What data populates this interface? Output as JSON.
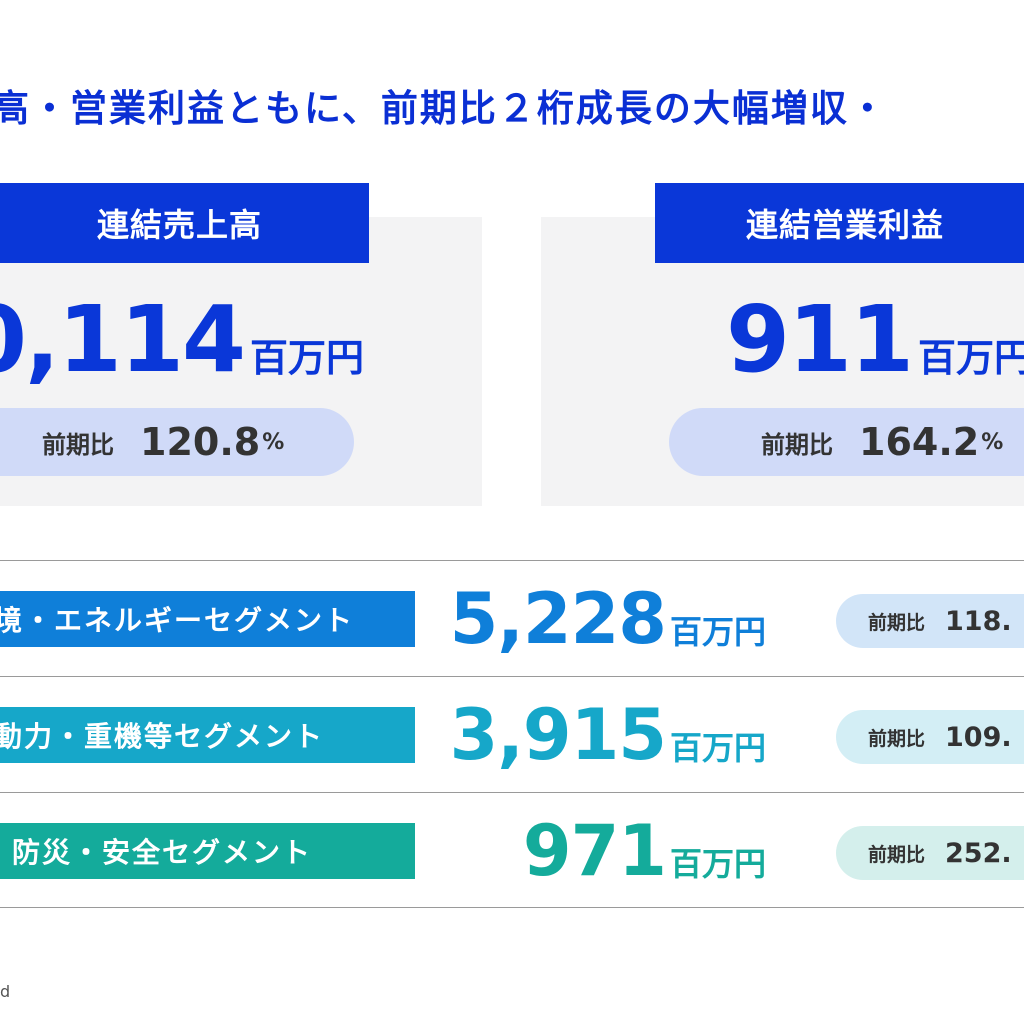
{
  "headline": "高・営業利益ともに、前期比２桁成長の大幅増収・",
  "colors": {
    "primary_blue": "#0a37d8",
    "segment1": "#0f7fd9",
    "segment2": "#16a7c9",
    "segment3": "#14ab9b"
  },
  "cards": {
    "sales": {
      "title": "連結売上高",
      "value": "0,114",
      "unit": "百万円",
      "yoy_label": "前期比",
      "yoy_value": "120.8",
      "yoy_unit": "%"
    },
    "operating_profit": {
      "title": "連結営業利益",
      "value": "911",
      "unit": "百万円",
      "yoy_label": "前期比",
      "yoy_value": "164.2",
      "yoy_unit": "%"
    }
  },
  "segments": [
    {
      "label": "境・エネルギーセグメント",
      "value": "5,228",
      "unit": "百万円",
      "yoy_label": "前期比",
      "yoy_value": "118."
    },
    {
      "label": "動力・重機等セグメント",
      "value": "3,915",
      "unit": "百万円",
      "yoy_label": "前期比",
      "yoy_value": "109."
    },
    {
      "label": "防災・安全セグメント",
      "value": "971",
      "unit": "百万円",
      "yoy_label": "前期比",
      "yoy_value": "252."
    }
  ],
  "footer": "d"
}
